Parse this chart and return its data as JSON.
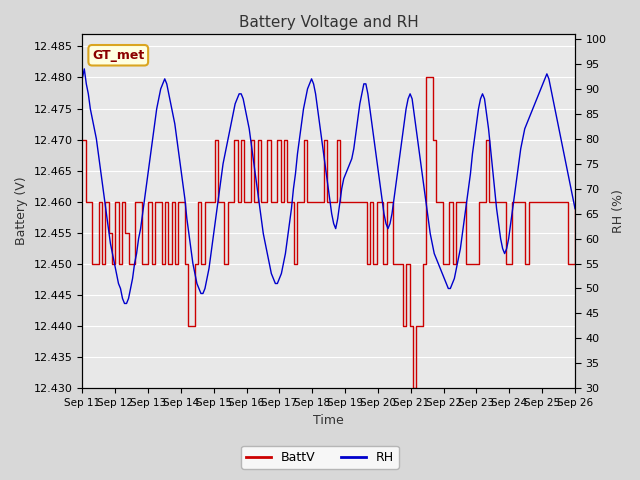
{
  "title": "Battery Voltage and RH",
  "xlabel": "Time",
  "ylabel_left": "Battery (V)",
  "ylabel_right": "RH (%)",
  "annotation": "GT_met",
  "ylim_left": [
    12.43,
    12.487
  ],
  "ylim_right": [
    30,
    101
  ],
  "yticks_left": [
    12.43,
    12.435,
    12.44,
    12.445,
    12.45,
    12.455,
    12.46,
    12.465,
    12.47,
    12.475,
    12.48,
    12.485
  ],
  "yticks_right": [
    30,
    35,
    40,
    45,
    50,
    55,
    60,
    65,
    70,
    75,
    80,
    85,
    90,
    95,
    100
  ],
  "xtick_labels": [
    "Sep 11",
    "Sep 12",
    "Sep 13",
    "Sep 14",
    "Sep 15",
    "Sep 16",
    "Sep 17",
    "Sep 18",
    "Sep 19",
    "Sep 20",
    "Sep 21",
    "Sep 22",
    "Sep 23",
    "Sep 24",
    "Sep 25",
    "Sep 26"
  ],
  "color_battv": "#cc0000",
  "color_rh": "#0000cc",
  "color_bg_inner": "#e8e8e8",
  "color_bg_outer": "#d8d8d8",
  "legend_labels": [
    "BattV",
    "RH"
  ],
  "battv": [
    12.47,
    12.46,
    12.46,
    12.45,
    12.45,
    12.46,
    12.45,
    12.46,
    12.455,
    12.45,
    12.46,
    12.45,
    12.46,
    12.455,
    12.45,
    12.45,
    12.46,
    12.46,
    12.45,
    12.45,
    12.46,
    12.45,
    12.46,
    12.46,
    12.45,
    12.46,
    12.45,
    12.46,
    12.45,
    12.46,
    12.46,
    12.45,
    12.44,
    12.44,
    12.45,
    12.46,
    12.45,
    12.46,
    12.46,
    12.46,
    12.47,
    12.46,
    12.46,
    12.45,
    12.46,
    12.46,
    12.47,
    12.46,
    12.47,
    12.46,
    12.46,
    12.47,
    12.46,
    12.47,
    12.46,
    12.46,
    12.47,
    12.46,
    12.46,
    12.47,
    12.46,
    12.47,
    12.46,
    12.46,
    12.45,
    12.46,
    12.46,
    12.47,
    12.46,
    12.46,
    12.46,
    12.46,
    12.46,
    12.47,
    12.46,
    12.46,
    12.46,
    12.47,
    12.46,
    12.46,
    12.46,
    12.46,
    12.46,
    12.46,
    12.46,
    12.46,
    12.45,
    12.46,
    12.45,
    12.46,
    12.46,
    12.45,
    12.46,
    12.46,
    12.45,
    12.45,
    12.45,
    12.44,
    12.45,
    12.44,
    12.43,
    12.44,
    12.44,
    12.45,
    12.48,
    12.48,
    12.47,
    12.46,
    12.46,
    12.45,
    12.45,
    12.46,
    12.45,
    12.46,
    12.46,
    12.46,
    12.45,
    12.45,
    12.45,
    12.45,
    12.46,
    12.46,
    12.47,
    12.46,
    12.46,
    12.46,
    12.46,
    12.46,
    12.45,
    12.45,
    12.46,
    12.46,
    12.46,
    12.46,
    12.45,
    12.46,
    12.46,
    12.46,
    12.46,
    12.46,
    12.46,
    12.46,
    12.46,
    12.46,
    12.46,
    12.46,
    12.46,
    12.45,
    12.45,
    12.46
  ],
  "rh": [
    92,
    94,
    91,
    89,
    86,
    84,
    82,
    80,
    77,
    74,
    71,
    68,
    65,
    62,
    59,
    57,
    55,
    53,
    51,
    50,
    48,
    47,
    47,
    48,
    50,
    52,
    55,
    57,
    60,
    62,
    65,
    68,
    71,
    74,
    77,
    80,
    83,
    86,
    88,
    90,
    91,
    92,
    91,
    89,
    87,
    85,
    83,
    80,
    77,
    74,
    71,
    68,
    64,
    61,
    58,
    55,
    53,
    51,
    50,
    49,
    49,
    50,
    52,
    54,
    57,
    60,
    63,
    66,
    69,
    72,
    75,
    77,
    79,
    81,
    83,
    85,
    87,
    88,
    89,
    89,
    88,
    86,
    84,
    82,
    79,
    76,
    73,
    70,
    67,
    64,
    61,
    59,
    57,
    55,
    53,
    52,
    51,
    51,
    52,
    53,
    55,
    57,
    60,
    63,
    66,
    70,
    73,
    77,
    80,
    83,
    86,
    88,
    90,
    91,
    92,
    91,
    89,
    86,
    83,
    80,
    77,
    74,
    71,
    68,
    65,
    63,
    62,
    64,
    67,
    70,
    72,
    73,
    74,
    75,
    76,
    78,
    81,
    84,
    87,
    89,
    91,
    91,
    89,
    86,
    83,
    80,
    77,
    74,
    71,
    68,
    65,
    63,
    62,
    63,
    65,
    68,
    71,
    74,
    77,
    80,
    83,
    86,
    88,
    89,
    88,
    85,
    82,
    79,
    76,
    73,
    70,
    67,
    64,
    61,
    59,
    57,
    56,
    55,
    54,
    53,
    52,
    51,
    50,
    50,
    51,
    52,
    54,
    56,
    58,
    61,
    64,
    67,
    70,
    73,
    77,
    80,
    83,
    86,
    88,
    89,
    88,
    85,
    82,
    78,
    74,
    70,
    66,
    63,
    60,
    58,
    57,
    58,
    60,
    63,
    66,
    69,
    72,
    75,
    78,
    80,
    82,
    83,
    84,
    85,
    86,
    87,
    88,
    89,
    90,
    91,
    92,
    93,
    92,
    90,
    88,
    86,
    84,
    82,
    80,
    78,
    76,
    74,
    72,
    70,
    68,
    66
  ]
}
